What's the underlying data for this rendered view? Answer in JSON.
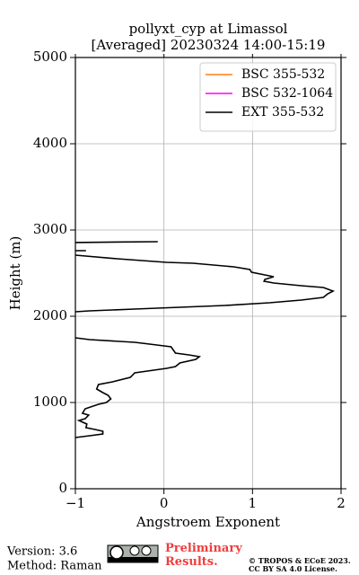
{
  "chart_data": {
    "type": "line",
    "title": "pollyxt_cyp at Limassol",
    "subtitle": "[Averaged] 20230324 14:00-15:19",
    "x_label": "Angstroem Exponent",
    "y_label": "Height (m)",
    "xlim": [
      -1,
      2
    ],
    "xticks": [
      {
        "value": -1,
        "label": "−1"
      },
      0,
      1,
      2
    ],
    "ylim": [
      0,
      5000
    ],
    "yticks": [
      0,
      1000,
      2000,
      3000,
      4000,
      5000
    ],
    "grid": true,
    "legend": "upper right",
    "y": [
      2865,
      2855,
      null,
      2760,
      2760,
      null,
      2708,
      2667,
      2625,
      2615,
      2573,
      2542,
      2510,
      2479,
      2458,
      2427,
      2406,
      2385,
      2354,
      2333,
      2292,
      2260,
      2219,
      2188,
      2156,
      2125,
      2104,
      2083,
      2063,
      2052,
      null,
      1750,
      1729,
      1698,
      1667,
      1646,
      1573,
      1552,
      1531,
      1500,
      1458,
      1417,
      1396,
      1344,
      1292,
      1240,
      1208,
      1156,
      1115,
      1083,
      1042,
      1000,
      979,
      927,
      875,
      854,
      813,
      792,
      750,
      708,
      688,
      667,
      635,
      615,
      594
    ],
    "series": [
      {
        "name": "BSC 355-532",
        "color": "#ff7f0e",
        "values": [
          null,
          null,
          null,
          null,
          null,
          null,
          null,
          null,
          null,
          null,
          null,
          null,
          null,
          null,
          null,
          null,
          null,
          null,
          null,
          null,
          null,
          null,
          null,
          null,
          null,
          null,
          null,
          null,
          null,
          null,
          null,
          null,
          null,
          null,
          null,
          null,
          null,
          null,
          null,
          null,
          null,
          null,
          null,
          null,
          null,
          null,
          null,
          null,
          null,
          null,
          null,
          null,
          null,
          null,
          null,
          null,
          null,
          null,
          null,
          null,
          null,
          null,
          null,
          null,
          null
        ]
      },
      {
        "name": "BSC 532-1064",
        "color": "#ff00ff",
        "values": [
          null,
          null,
          null,
          null,
          null,
          null,
          null,
          null,
          null,
          null,
          null,
          null,
          null,
          null,
          null,
          null,
          null,
          null,
          null,
          null,
          null,
          null,
          null,
          null,
          null,
          null,
          null,
          null,
          null,
          null,
          null,
          null,
          null,
          null,
          null,
          null,
          null,
          null,
          null,
          null,
          null,
          null,
          null,
          null,
          null,
          null,
          null,
          null,
          null,
          null,
          null,
          null,
          null,
          null,
          null,
          null,
          null,
          null,
          null,
          null,
          null,
          null,
          null,
          null,
          null
        ]
      },
      {
        "name": "EXT 355-532",
        "color": "#000000",
        "values": [
          -0.07,
          -1,
          null,
          -1,
          -0.88,
          null,
          -1,
          -0.53,
          0.03,
          0.33,
          0.79,
          0.97,
          0.99,
          1.14,
          1.24,
          1.14,
          1.13,
          1.24,
          1.55,
          1.8,
          1.91,
          1.85,
          1.8,
          1.55,
          1.19,
          0.69,
          0.18,
          -0.33,
          -0.84,
          -1,
          null,
          -1,
          -0.84,
          -0.33,
          -0.08,
          0.08,
          0.13,
          0.28,
          0.4,
          0.36,
          0.18,
          0.13,
          0.03,
          -0.33,
          -0.38,
          -0.58,
          -0.74,
          -0.76,
          -0.69,
          -0.63,
          -0.6,
          -0.65,
          -0.74,
          -0.89,
          -0.92,
          -0.85,
          -0.89,
          -0.96,
          -0.87,
          -0.88,
          -0.78,
          -0.69,
          -0.69,
          -0.84,
          -1
        ]
      }
    ],
    "footer": {
      "version": "Version: 3.6",
      "method": "Method: Raman",
      "preliminary": "Preliminary Results.",
      "copyright": "© TROPOS & ECoE 2023.",
      "license": "CC BY SA 4.0 License."
    }
  }
}
